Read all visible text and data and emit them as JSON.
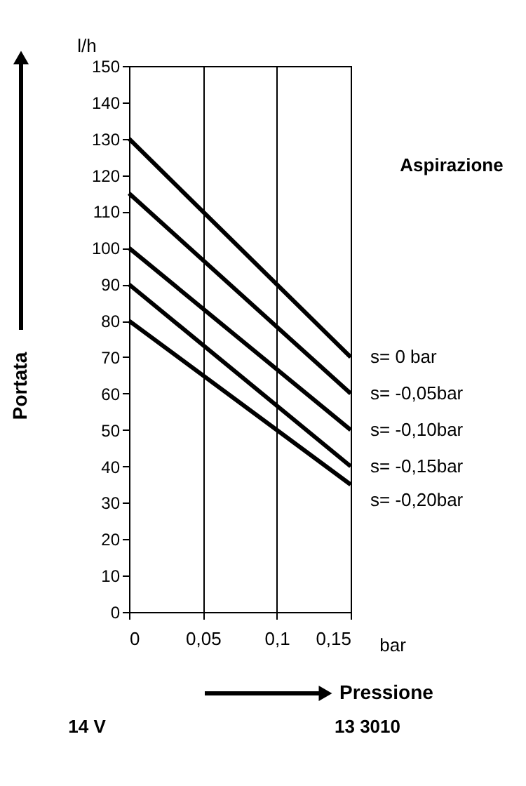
{
  "chart_data": {
    "type": "line",
    "xlabel": "Pressione",
    "ylabel": "Portata",
    "x": [
      0,
      0.15
    ],
    "series": [
      {
        "name": "s=   0    bar",
        "color": "#000000",
        "values": [
          130,
          70
        ]
      },
      {
        "name": "s=  -0,05bar",
        "color": "#000000",
        "values": [
          115,
          60
        ]
      },
      {
        "name": "s=  -0,10bar",
        "color": "#000000",
        "values": [
          100,
          50
        ]
      },
      {
        "name": "s=  -0,15bar",
        "color": "#000000",
        "values": [
          90,
          40
        ]
      },
      {
        "name": "s=  -0,20bar",
        "color": "#000000",
        "values": [
          80,
          35
        ]
      }
    ],
    "xlim": [
      0,
      0.15
    ],
    "xticks": [
      0,
      {
        "value": 0.05,
        "label": "0,05"
      },
      {
        "value": 0.1,
        "label": "0,1"
      },
      {
        "value": 0.15,
        "label": "0,15"
      }
    ],
    "ylim": [
      0,
      150
    ],
    "yticks": [
      0,
      10,
      20,
      30,
      40,
      50,
      60,
      70,
      80,
      90,
      100,
      110,
      120,
      130,
      140,
      150
    ],
    "grid": "x",
    "marker": "none",
    "line_style": "solid",
    "annotations": [
      "l/h",
      "bar",
      "Aspirazione",
      "14 V",
      "13 3010"
    ]
  }
}
